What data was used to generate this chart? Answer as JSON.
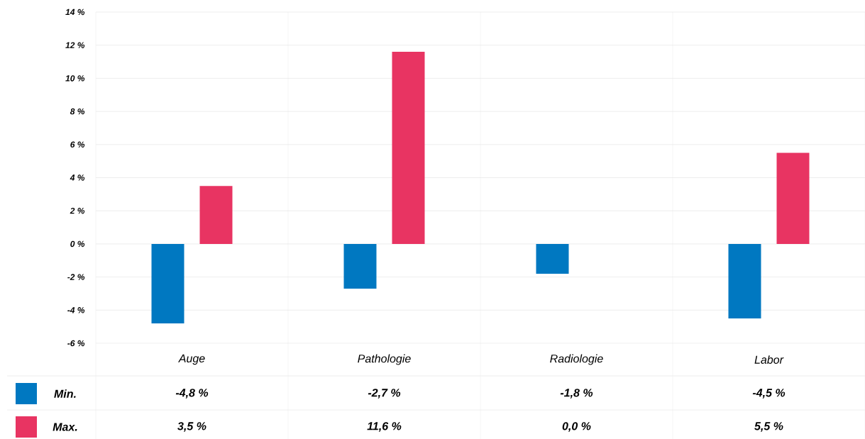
{
  "chart_data": {
    "type": "bar",
    "categories": [
      "Auge",
      "Pathologie",
      "Radiologie",
      "Labor"
    ],
    "series": [
      {
        "name": "Min.",
        "color": "#0078c1",
        "values": [
          -4.8,
          -2.7,
          -1.8,
          -4.5
        ],
        "value_labels": [
          "-4,8 %",
          "-2,7 %",
          "-1,8 %",
          "-4,5 %"
        ]
      },
      {
        "name": "Max.",
        "color": "#e83462",
        "values": [
          3.5,
          11.6,
          0.0,
          5.5
        ],
        "value_labels": [
          "3,5 %",
          "11,6 %",
          "0,0 %",
          "5,5 %"
        ]
      }
    ],
    "ylim": [
      -6,
      14
    ],
    "yticks": [
      {
        "value": -6,
        "label": "-6 %"
      },
      {
        "value": -4,
        "label": "-4 %"
      },
      {
        "value": -2,
        "label": "-2 %"
      },
      {
        "value": 0,
        "label": "0 %"
      },
      {
        "value": 2,
        "label": "2 %"
      },
      {
        "value": 4,
        "label": "4 %"
      },
      {
        "value": 6,
        "label": "6 %"
      },
      {
        "value": 8,
        "label": "8 %"
      },
      {
        "value": 10,
        "label": "10 %"
      },
      {
        "value": 12,
        "label": "12 %"
      },
      {
        "value": 14,
        "label": "14 %"
      }
    ],
    "grid": true,
    "legend": "bottom left"
  }
}
